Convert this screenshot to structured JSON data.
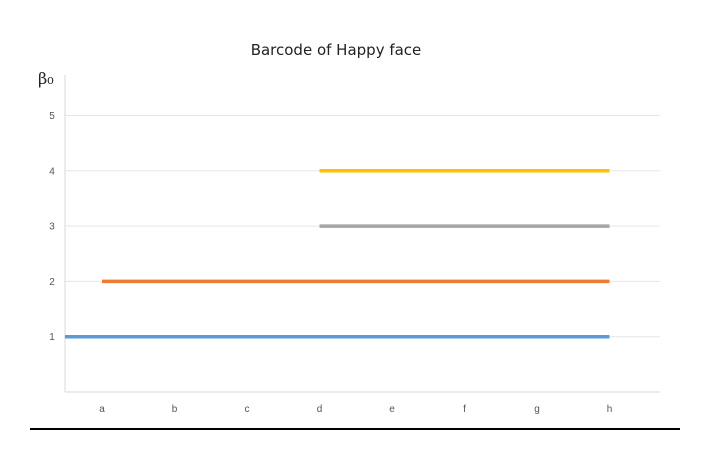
{
  "chart_data": {
    "type": "line",
    "title": "Barcode of Happy face",
    "ylabel": "β₀",
    "xlabel": "",
    "categories": [
      "a",
      "b",
      "c",
      "d",
      "e",
      "f",
      "g",
      "h"
    ],
    "y_ticks": [
      "1",
      "2",
      "3",
      "4",
      "5"
    ],
    "ylim": [
      0,
      5
    ],
    "grid": true,
    "series": [
      {
        "y": 1,
        "start": "a",
        "end": "h",
        "color": "#5b9bd5",
        "extends_left_of_first_category": true
      },
      {
        "y": 2,
        "start": "a",
        "end": "h",
        "color": "#ed7d31"
      },
      {
        "y": 3,
        "start": "d",
        "end": "h",
        "color": "#a5a5a5"
      },
      {
        "y": 4,
        "start": "d",
        "end": "h",
        "color": "#ffc000"
      }
    ]
  }
}
